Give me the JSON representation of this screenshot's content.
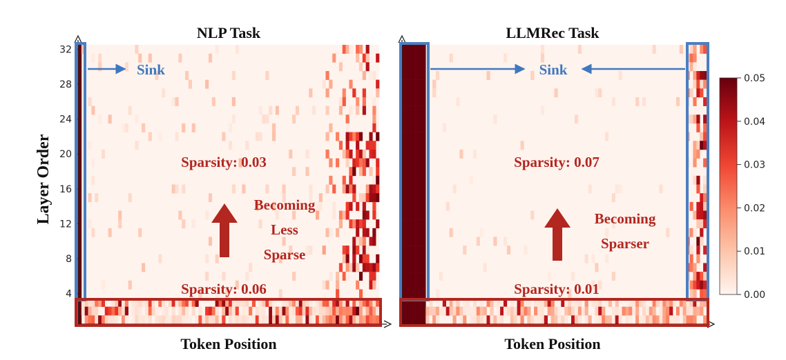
{
  "colors": {
    "low": "#fff5f0",
    "high": "#67000d",
    "sink_box": "#4a7fc1",
    "annotation": "#b2271f",
    "sink_text": "#3f78bd"
  },
  "chart_data": [
    {
      "type": "heatmap",
      "title": "NLP Task",
      "xlabel": "Token Position",
      "ylabel": "Layer Order",
      "y_ticks": [
        "4",
        "8",
        "12",
        "16",
        "20",
        "24",
        "28",
        "32"
      ],
      "sink_label": "Sink",
      "annotations": {
        "sparsity_top": "Sparsity: 0.03",
        "sparsity_bottom": "Sparsity: 0.06",
        "trend": [
          "Becoming",
          "Less",
          "Sparse"
        ]
      }
    },
    {
      "type": "heatmap",
      "title": "LLMRec Task",
      "xlabel": "Token Position",
      "sink_label": "Sink",
      "annotations": {
        "sparsity_top": "Sparsity: 0.07",
        "sparsity_bottom": "Sparsity: 0.01",
        "trend": [
          "Becoming",
          "Sparser"
        ]
      }
    }
  ],
  "colorbar": {
    "min": 0.0,
    "max": 0.05,
    "ticks": [
      "0.00",
      "0.01",
      "0.02",
      "0.03",
      "0.04",
      "0.05"
    ]
  }
}
